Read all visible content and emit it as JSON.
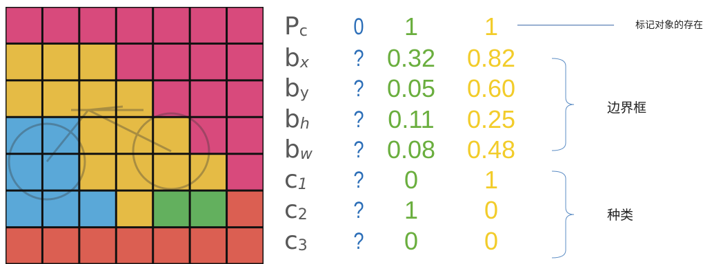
{
  "grid": {
    "rows": [
      [
        "#d84a7c",
        "#d84a7c",
        "#d84a7c",
        "#d84a7c",
        "#d84a7c",
        "#d84a7c",
        "#d84a7c"
      ],
      [
        "#e5bb45",
        "#e5bb45",
        "#e5bb45",
        "#d84a7c",
        "#d84a7c",
        "#d84a7c",
        "#d84a7c"
      ],
      [
        "#e5bb45",
        "#e5bb45",
        "#e5bb45",
        "#e5bb45",
        "#d84a7c",
        "#d84a7c",
        "#d84a7c"
      ],
      [
        "#5aa8d8",
        "#5aa8d8",
        "#e5bb45",
        "#e5bb45",
        "#e5bb45",
        "#d84a7c",
        "#d84a7c"
      ],
      [
        "#5aa8d8",
        "#5aa8d8",
        "#e5bb45",
        "#e5bb45",
        "#e5bb45",
        "#e5bb45",
        "#d84a7c"
      ],
      [
        "#5aa8d8",
        "#5aa8d8",
        "#5aa8d8",
        "#e5bb45",
        "#63b05e",
        "#63b05e",
        "#db5f52"
      ],
      [
        "#db5f52",
        "#db5f52",
        "#db5f52",
        "#db5f52",
        "#db5f52",
        "#db5f52",
        "#db5f52"
      ]
    ]
  },
  "vector": {
    "rows": [
      {
        "label": "P",
        "sub": "c",
        "sub_italic": false,
        "q": "0",
        "q_color": "#2d6fb8",
        "v1": "1",
        "v2": "1"
      },
      {
        "label": "b",
        "sub": "x",
        "sub_italic": true,
        "q": "?",
        "q_color": "#2d6fb8",
        "v1": "0.32",
        "v2": "0.82"
      },
      {
        "label": "b",
        "sub": "y",
        "sub_italic": false,
        "q": "?",
        "q_color": "#2d6fb8",
        "v1": "0.05",
        "v2": "0.60"
      },
      {
        "label": "b",
        "sub": "h",
        "sub_italic": true,
        "q": "?",
        "q_color": "#2d6fb8",
        "v1": "0.11",
        "v2": "0.25"
      },
      {
        "label": "b",
        "sub": "w",
        "sub_italic": true,
        "q": "?",
        "q_color": "#2d6fb8",
        "v1": "0.08",
        "v2": "0.48"
      },
      {
        "label": "c",
        "sub": "1",
        "sub_italic": true,
        "q": "?",
        "q_color": "#2d6fb8",
        "v1": "0",
        "v2": "1"
      },
      {
        "label": "c",
        "sub": "2",
        "sub_italic": false,
        "q": "?",
        "q_color": "#2d6fb8",
        "v1": "1",
        "v2": "0"
      },
      {
        "label": "c",
        "sub": "3",
        "sub_italic": false,
        "q": "?",
        "q_color": "#2d6fb8",
        "v1": "0",
        "v2": "0"
      }
    ]
  },
  "annotations": {
    "pc_note": "标记对象的存在",
    "bbox_label": "边界框",
    "class_label": "种类"
  },
  "colors": {
    "label": "#585858",
    "question": "#2d6fb8",
    "green": "#6aae3e",
    "yellow": "#f2cc2a",
    "line": "#3d6aa8"
  }
}
